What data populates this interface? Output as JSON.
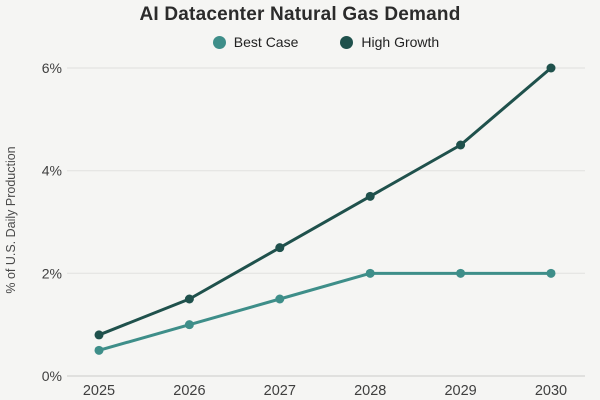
{
  "page": {
    "background": "#f5f5f3"
  },
  "chart_data": {
    "type": "line",
    "title": "AI Datacenter Natural Gas Demand",
    "categories": [
      "2025",
      "2026",
      "2027",
      "2028",
      "2029",
      "2030"
    ],
    "series": [
      {
        "name": "Best Case",
        "color": "#3e8e89",
        "values": [
          0.5,
          1.0,
          1.5,
          2.0,
          2.0,
          2.0
        ]
      },
      {
        "name": "High Growth",
        "color": "#1f514c",
        "values": [
          0.8,
          1.5,
          2.5,
          3.5,
          4.5,
          6.0
        ]
      }
    ],
    "xlabel": "",
    "ylabel": "% of U.S. Daily Production",
    "ylim": [
      0,
      6
    ],
    "yticks": [
      0,
      2,
      4,
      6
    ],
    "ytick_suffix": "%",
    "grid": "horizontal",
    "legend_position": "top",
    "marker": "circle",
    "styles": {
      "text_color": "#3f3f3f",
      "grid_color": "#e4e4e2",
      "axis_line_color": "#d4d4d2",
      "line_width": 3,
      "marker_radius": 4.5
    }
  }
}
